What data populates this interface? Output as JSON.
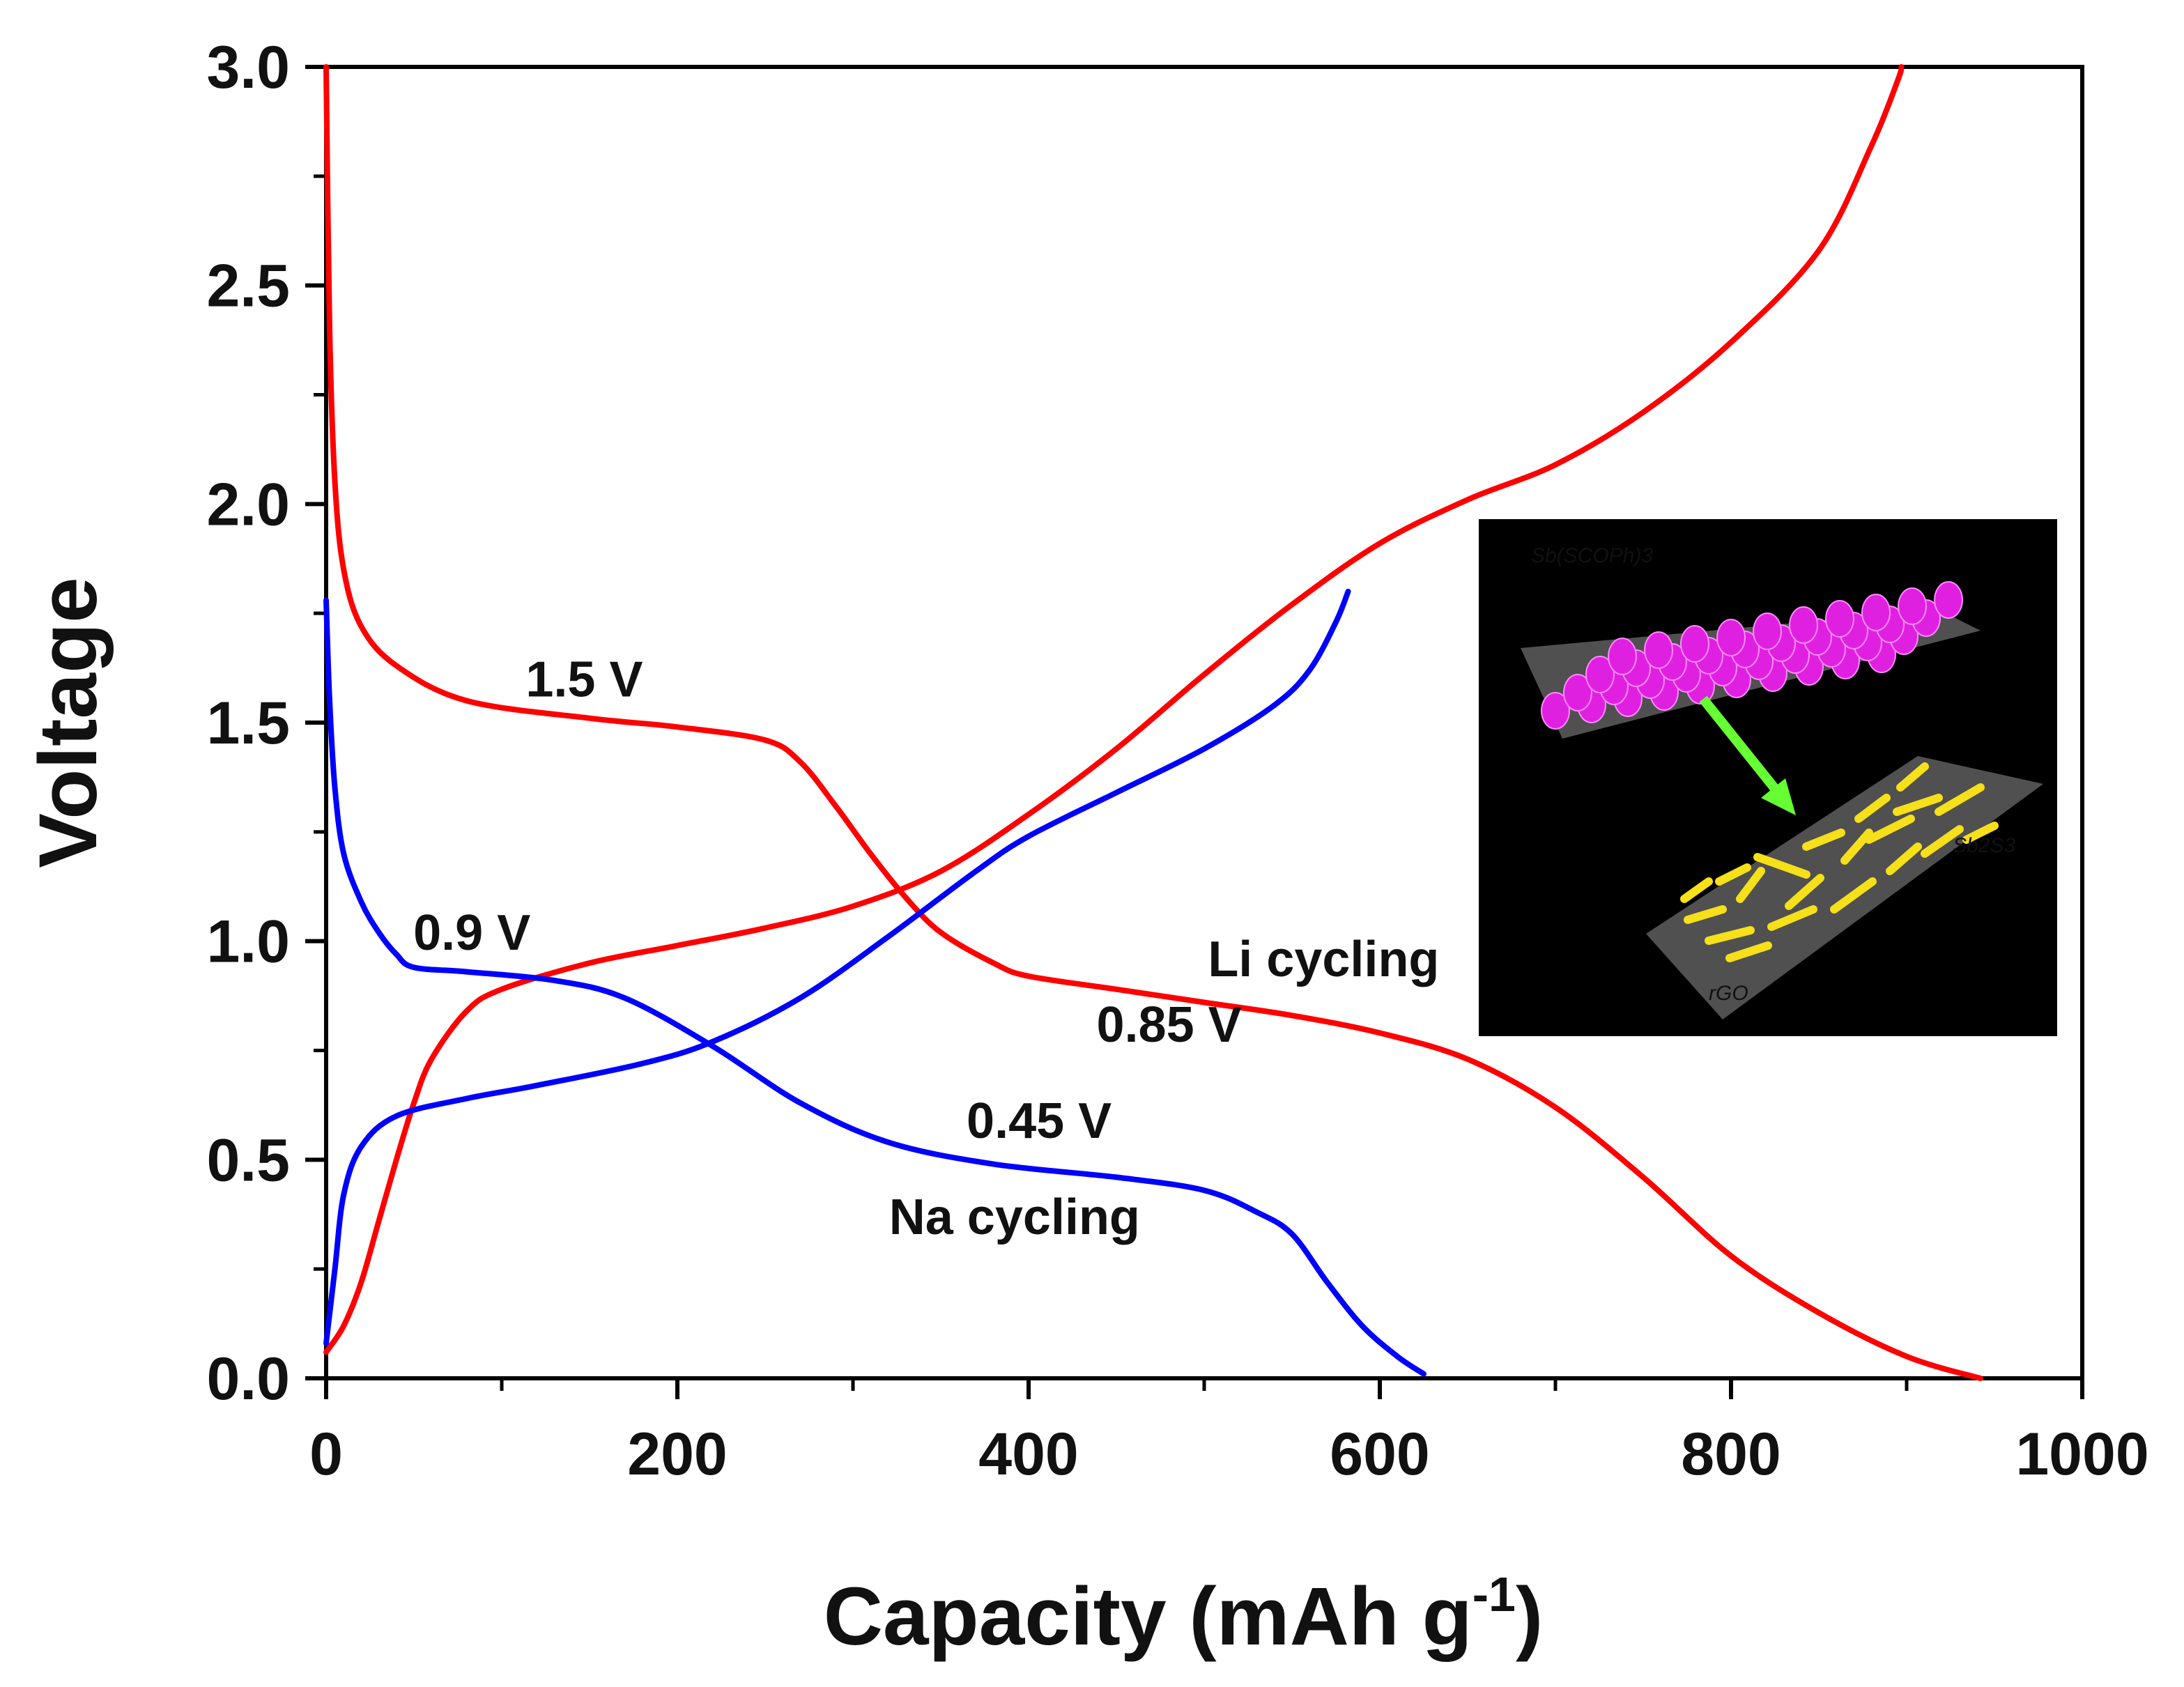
{
  "chart_data": {
    "type": "line",
    "title": "",
    "xlabel": "Capacity (mAh g",
    "xlabel_sup": "-1",
    "xlabel_close": ")",
    "ylabel": "Voltage",
    "xlim": [
      0,
      1000
    ],
    "ylim": [
      0,
      3.0
    ],
    "xticks": [
      "0",
      "200",
      "400",
      "600",
      "800",
      "1000"
    ],
    "yticks": [
      "0.0",
      "0.5",
      "1.0",
      "1.5",
      "2.0",
      "2.5",
      "3.0"
    ],
    "grid": false,
    "series": [
      {
        "name": "Li discharge",
        "color": "#ff0000",
        "points": [
          [
            0,
            3.0
          ],
          [
            2,
            2.4
          ],
          [
            5,
            2.05
          ],
          [
            10,
            1.85
          ],
          [
            20,
            1.72
          ],
          [
            40,
            1.63
          ],
          [
            80,
            1.55
          ],
          [
            150,
            1.51
          ],
          [
            200,
            1.49
          ],
          [
            250,
            1.46
          ],
          [
            270,
            1.41
          ],
          [
            290,
            1.31
          ],
          [
            310,
            1.2
          ],
          [
            330,
            1.1
          ],
          [
            350,
            1.02
          ],
          [
            380,
            0.95
          ],
          [
            400,
            0.92
          ],
          [
            450,
            0.89
          ],
          [
            500,
            0.86
          ],
          [
            550,
            0.83
          ],
          [
            600,
            0.79
          ],
          [
            650,
            0.73
          ],
          [
            700,
            0.62
          ],
          [
            750,
            0.46
          ],
          [
            800,
            0.28
          ],
          [
            850,
            0.15
          ],
          [
            900,
            0.05
          ],
          [
            942,
            0.0
          ]
        ]
      },
      {
        "name": "Li charge",
        "color": "#ff0000",
        "points": [
          [
            0,
            0.06
          ],
          [
            10,
            0.12
          ],
          [
            20,
            0.22
          ],
          [
            30,
            0.36
          ],
          [
            40,
            0.5
          ],
          [
            50,
            0.63
          ],
          [
            60,
            0.73
          ],
          [
            80,
            0.84
          ],
          [
            100,
            0.89
          ],
          [
            150,
            0.95
          ],
          [
            200,
            0.99
          ],
          [
            250,
            1.03
          ],
          [
            300,
            1.08
          ],
          [
            350,
            1.16
          ],
          [
            400,
            1.29
          ],
          [
            450,
            1.44
          ],
          [
            500,
            1.61
          ],
          [
            550,
            1.77
          ],
          [
            600,
            1.91
          ],
          [
            650,
            2.01
          ],
          [
            700,
            2.09
          ],
          [
            750,
            2.21
          ],
          [
            800,
            2.37
          ],
          [
            850,
            2.58
          ],
          [
            880,
            2.82
          ],
          [
            895,
            2.97
          ],
          [
            897,
            3.0
          ]
        ]
      },
      {
        "name": "Na discharge",
        "color": "#0000ff",
        "points": [
          [
            0,
            1.78
          ],
          [
            2,
            1.55
          ],
          [
            5,
            1.35
          ],
          [
            10,
            1.2
          ],
          [
            20,
            1.09
          ],
          [
            30,
            1.02
          ],
          [
            40,
            0.97
          ],
          [
            50,
            0.94
          ],
          [
            80,
            0.93
          ],
          [
            130,
            0.91
          ],
          [
            170,
            0.87
          ],
          [
            220,
            0.76
          ],
          [
            270,
            0.63
          ],
          [
            320,
            0.54
          ],
          [
            380,
            0.49
          ],
          [
            450,
            0.46
          ],
          [
            500,
            0.43
          ],
          [
            530,
            0.38
          ],
          [
            550,
            0.33
          ],
          [
            570,
            0.22
          ],
          [
            590,
            0.12
          ],
          [
            610,
            0.05
          ],
          [
            625,
            0.01
          ]
        ]
      },
      {
        "name": "Na charge",
        "color": "#0000ff",
        "points": [
          [
            0,
            0.08
          ],
          [
            5,
            0.25
          ],
          [
            10,
            0.42
          ],
          [
            20,
            0.53
          ],
          [
            40,
            0.6
          ],
          [
            80,
            0.64
          ],
          [
            120,
            0.67
          ],
          [
            180,
            0.72
          ],
          [
            220,
            0.77
          ],
          [
            270,
            0.87
          ],
          [
            320,
            1.01
          ],
          [
            370,
            1.16
          ],
          [
            400,
            1.24
          ],
          [
            450,
            1.34
          ],
          [
            500,
            1.44
          ],
          [
            540,
            1.54
          ],
          [
            560,
            1.62
          ],
          [
            575,
            1.73
          ],
          [
            582,
            1.8
          ]
        ]
      }
    ],
    "annotations": [
      {
        "text": "1.5 V",
        "x": 147,
        "y": 1.56
      },
      {
        "text": "0.9 V",
        "x": 83,
        "y": 0.98
      },
      {
        "text": "Li cycling",
        "x": 568,
        "y": 0.92
      },
      {
        "text": "0.85 V",
        "x": 480,
        "y": 0.77
      },
      {
        "text": "0.45 V",
        "x": 406,
        "y": 0.55
      },
      {
        "text": "Na cycling",
        "x": 392,
        "y": 0.33
      }
    ],
    "inset": {
      "labels": {
        "precursor": "Sb(SCOPh)3",
        "product": "Sb2S3",
        "substrate": "rGO"
      },
      "colors": {
        "background": "#000000",
        "spheres": "#e020e0",
        "rods": "#f5e019",
        "arrow": "#66ff33",
        "plate": "#505050"
      }
    }
  }
}
